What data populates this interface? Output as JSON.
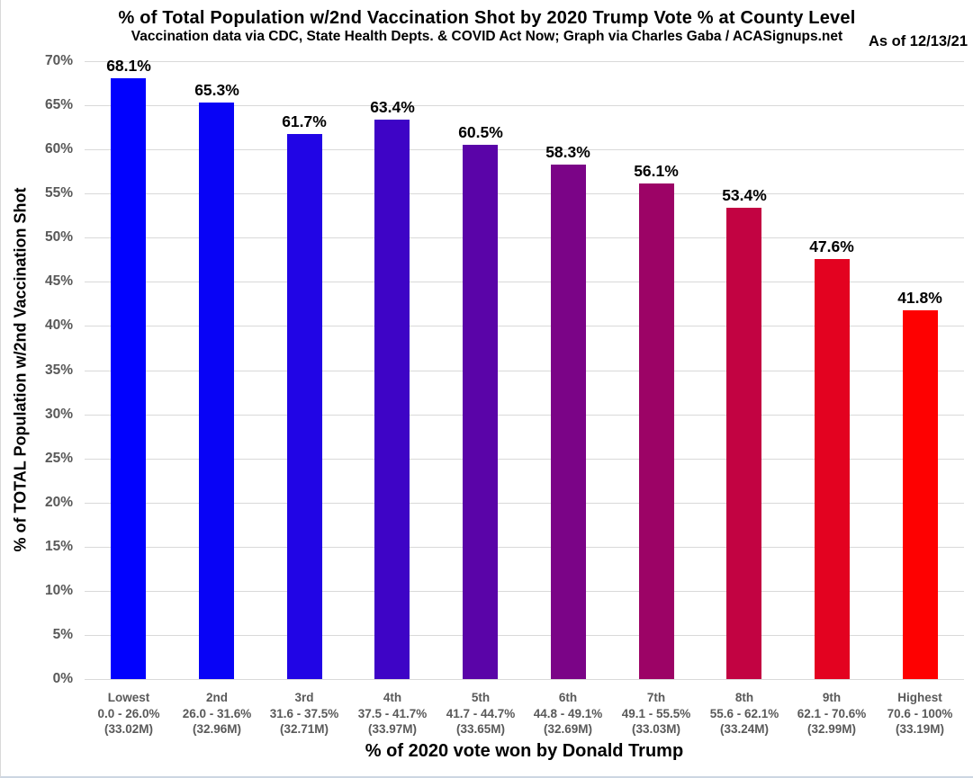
{
  "header": {
    "title": "% of Total Population w/2nd Vaccination Shot by 2020 Trump Vote % at County Level",
    "subtitle": "Vaccination data via CDC, State Health Depts. & COVID Act Now; Graph via Charles Gaba / ACASignups.net",
    "as_of": "As of 12/13/21"
  },
  "chart_data": {
    "type": "bar",
    "title": "% of Total Population w/2nd Vaccination Shot by 2020 Trump Vote % at County Level",
    "subtitle": "Vaccination data via CDC, State Health Depts. & COVID Act Now; Graph via Charles Gaba / ACASignups.net",
    "as_of_note": "As of 12/13/21",
    "xlabel": "% of 2020 vote won by Donald Trump",
    "ylabel": "% of TOTAL Population w/2nd Vaccination Shot",
    "ylim": [
      0,
      70
    ],
    "grid": true,
    "legend": "none",
    "yticks": [
      "0%",
      "5%",
      "10%",
      "15%",
      "20%",
      "25%",
      "30%",
      "35%",
      "40%",
      "45%",
      "50%",
      "55%",
      "60%",
      "65%",
      "70%"
    ],
    "categories": [
      {
        "rank": "Lowest",
        "range": "0.0 - 26.0%",
        "population": "(33.02M)"
      },
      {
        "rank": "2nd",
        "range": "26.0 - 31.6%",
        "population": "(32.96M)"
      },
      {
        "rank": "3rd",
        "range": "31.6 - 37.5%",
        "population": "(32.71M)"
      },
      {
        "rank": "4th",
        "range": "37.5 - 41.7%",
        "population": "(33.97M)"
      },
      {
        "rank": "5th",
        "range": "41.7 - 44.7%",
        "population": "(33.65M)"
      },
      {
        "rank": "6th",
        "range": "44.8 - 49.1%",
        "population": "(32.69M)"
      },
      {
        "rank": "7th",
        "range": "49.1 - 55.5%",
        "population": "(33.03M)"
      },
      {
        "rank": "8th",
        "range": "55.6 - 62.1%",
        "population": "(33.24M)"
      },
      {
        "rank": "9th",
        "range": "62.1 - 70.6%",
        "population": "(32.99M)"
      },
      {
        "rank": "Highest",
        "range": "70.6 - 100%",
        "population": "(33.19M)"
      }
    ],
    "values": [
      68.1,
      65.3,
      61.7,
      63.4,
      60.5,
      58.3,
      56.1,
      53.4,
      47.6,
      41.8
    ],
    "value_labels": [
      "68.1%",
      "65.3%",
      "61.7%",
      "63.4%",
      "60.5%",
      "58.3%",
      "56.1%",
      "53.4%",
      "47.6%",
      "41.8%"
    ],
    "bar_colors": [
      "#0101fe",
      "#0803f6",
      "#2105e5",
      "#3e04c6",
      "#5a04a8",
      "#7b0487",
      "#9c0366",
      "#c20342",
      "#e30220",
      "#fe0101"
    ]
  },
  "colors": {
    "grid": "#d9d9d9",
    "axis_tick_text": "#595959",
    "data_label_text": "#000000",
    "frame_border": "#ccd6e2",
    "background": "#ffffff"
  }
}
